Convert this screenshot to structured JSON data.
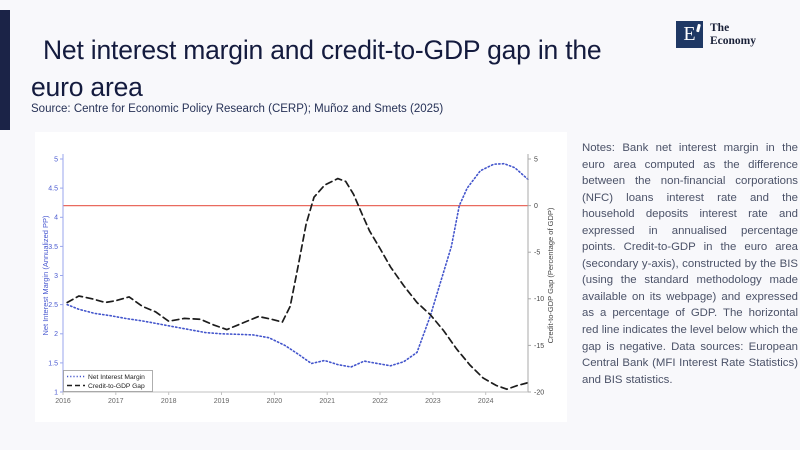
{
  "header": {
    "title_lines": [
      "Net interest margin and credit-to-GDP gap in the",
      "euro area"
    ],
    "source": "Source: Centre for Economic Policy Research (CERP); Muñoz and Smets (2025)",
    "logo": {
      "mark": "E",
      "text_line1": "The",
      "text_line2": "Economy"
    }
  },
  "notes": {
    "text": "Notes: Bank net interest margin in the euro area computed as the difference between the non-financial corporations (NFC) loans interest rate and the household deposits interest rate and expressed in annualised percentage points. Credit-to-GDP in the euro area (secondary y-axis), constructed by the BIS (using the standard methodology made available on its webpage) and expressed as a percentage of GDP. The horizontal red line indicates the level below which the gap is negative. Data sources: European Central Bank (MFI Interest Rate Statistics) and BIS statistics."
  },
  "colors": {
    "background": "#f8f8fb",
    "accent": "#1b2347",
    "title": "#141b3e",
    "card": "#ffffff",
    "nim": "#4355cc",
    "gap": "#1c1c1c",
    "reference": "#e96a5f",
    "left_axis_text": "#4a5ad0",
    "left_spine": "#9aa6ec",
    "right_axis_text": "#444444",
    "bottom_spine": "#c2c2c2",
    "x_tick_text": "#666666",
    "legend_border": "#9a9a9a"
  },
  "chart_data": {
    "type": "line",
    "title": "",
    "x_axis": {
      "range": [
        2016,
        2024.8
      ],
      "ticks": [
        2016,
        2017,
        2018,
        2019,
        2020,
        2021,
        2022,
        2023,
        2024
      ]
    },
    "left_axis": {
      "label": "Net Interest Margin (Annualized PP)",
      "range": [
        1,
        5
      ],
      "ticks": [
        1,
        1.5,
        2,
        2.5,
        3,
        3.5,
        4,
        4.5,
        5
      ]
    },
    "right_axis": {
      "label": "Credit-to-GDP Gap (Percentage of GDP)",
      "range": [
        -20,
        5
      ],
      "ticks": [
        -20,
        -15,
        -10,
        -5,
        0,
        5
      ]
    },
    "reference_line": {
      "axis": "right",
      "value": 0,
      "meaning": "level below which the gap is negative"
    },
    "legend": {
      "position": "bottom-left",
      "entries": [
        "Net Interest Margin",
        "Credit-to-GDP Gap"
      ]
    },
    "series": [
      {
        "name": "Net Interest Margin",
        "axis": "left",
        "style": "dotted",
        "color_key": "nim",
        "points": [
          [
            2016.08,
            2.5
          ],
          [
            2016.3,
            2.42
          ],
          [
            2016.6,
            2.35
          ],
          [
            2016.9,
            2.31
          ],
          [
            2017.2,
            2.26
          ],
          [
            2017.5,
            2.22
          ],
          [
            2017.8,
            2.17
          ],
          [
            2018.1,
            2.12
          ],
          [
            2018.4,
            2.07
          ],
          [
            2018.7,
            2.02
          ],
          [
            2019.0,
            2.0
          ],
          [
            2019.3,
            1.99
          ],
          [
            2019.6,
            1.98
          ],
          [
            2019.9,
            1.93
          ],
          [
            2020.2,
            1.8
          ],
          [
            2020.45,
            1.65
          ],
          [
            2020.7,
            1.49
          ],
          [
            2020.95,
            1.54
          ],
          [
            2021.2,
            1.47
          ],
          [
            2021.45,
            1.43
          ],
          [
            2021.7,
            1.53
          ],
          [
            2021.95,
            1.49
          ],
          [
            2022.2,
            1.45
          ],
          [
            2022.45,
            1.52
          ],
          [
            2022.7,
            1.68
          ],
          [
            2022.95,
            2.3
          ],
          [
            2023.15,
            2.9
          ],
          [
            2023.35,
            3.5
          ],
          [
            2023.5,
            4.2
          ],
          [
            2023.65,
            4.5
          ],
          [
            2023.9,
            4.8
          ],
          [
            2024.15,
            4.91
          ],
          [
            2024.35,
            4.92
          ],
          [
            2024.55,
            4.85
          ],
          [
            2024.8,
            4.65
          ]
        ]
      },
      {
        "name": "Credit-to-GDP Gap",
        "axis": "right",
        "style": "dashed",
        "color_key": "gap",
        "points": [
          [
            2016.08,
            -10.4
          ],
          [
            2016.3,
            -9.7
          ],
          [
            2016.55,
            -10.0
          ],
          [
            2016.8,
            -10.4
          ],
          [
            2017.0,
            -10.2
          ],
          [
            2017.25,
            -9.8
          ],
          [
            2017.5,
            -10.8
          ],
          [
            2017.75,
            -11.4
          ],
          [
            2018.0,
            -12.4
          ],
          [
            2018.3,
            -12.1
          ],
          [
            2018.6,
            -12.2
          ],
          [
            2018.85,
            -12.8
          ],
          [
            2019.1,
            -13.3
          ],
          [
            2019.4,
            -12.6
          ],
          [
            2019.7,
            -11.9
          ],
          [
            2019.95,
            -12.2
          ],
          [
            2020.15,
            -12.5
          ],
          [
            2020.3,
            -10.8
          ],
          [
            2020.45,
            -6.5
          ],
          [
            2020.6,
            -2.0
          ],
          [
            2020.75,
            0.9
          ],
          [
            2020.95,
            2.2
          ],
          [
            2021.2,
            2.9
          ],
          [
            2021.35,
            2.6
          ],
          [
            2021.5,
            1.2
          ],
          [
            2021.65,
            -0.8
          ],
          [
            2021.8,
            -2.7
          ],
          [
            2022.0,
            -4.6
          ],
          [
            2022.2,
            -6.6
          ],
          [
            2022.45,
            -8.6
          ],
          [
            2022.7,
            -10.4
          ],
          [
            2022.95,
            -11.7
          ],
          [
            2023.2,
            -13.4
          ],
          [
            2023.45,
            -15.4
          ],
          [
            2023.7,
            -17.1
          ],
          [
            2023.95,
            -18.5
          ],
          [
            2024.2,
            -19.3
          ],
          [
            2024.4,
            -19.7
          ],
          [
            2024.6,
            -19.3
          ],
          [
            2024.8,
            -19.0
          ]
        ]
      }
    ]
  }
}
